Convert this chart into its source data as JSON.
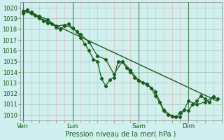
{
  "background_color": "#cff0ee",
  "grid_color_major": "#aaccbb",
  "grid_color_minor_x": "#f0bbbb",
  "line_color": "#1a5c1a",
  "xlabel": "Pression niveau de la mer( hPa )",
  "ylim": [
    1009.5,
    1020.5
  ],
  "yticks": [
    1010,
    1011,
    1012,
    1013,
    1014,
    1015,
    1016,
    1017,
    1018,
    1019,
    1020
  ],
  "xtick_labels": [
    "Ven",
    "Lun",
    "Sam",
    "Dim"
  ],
  "xtick_positions": [
    0,
    36,
    84,
    120
  ],
  "vline_x": [
    0,
    36,
    84,
    120
  ],
  "xlim": [
    -2,
    144
  ],
  "series1_x": [
    0,
    3,
    6,
    9,
    12,
    15,
    18,
    21,
    24,
    27,
    30,
    33,
    36,
    39,
    42,
    45,
    48,
    51,
    54,
    57,
    60,
    63,
    66,
    69,
    72,
    75,
    78,
    81,
    84,
    87,
    90,
    93,
    96,
    99,
    102,
    105,
    108,
    111,
    114,
    117,
    120,
    123,
    126,
    129,
    132,
    135,
    138,
    141
  ],
  "series1_y": [
    1019.7,
    1019.8,
    1019.5,
    1019.3,
    1019.0,
    1018.8,
    1018.6,
    1018.5,
    1018.2,
    1018.0,
    1018.3,
    1018.5,
    1018.1,
    1017.8,
    1017.2,
    1016.6,
    1016.0,
    1015.2,
    1015.0,
    1013.4,
    1012.7,
    1013.3,
    1013.5,
    1015.0,
    1015.0,
    1014.4,
    1014.0,
    1013.5,
    1013.2,
    1013.0,
    1012.8,
    1012.5,
    1011.8,
    1011.2,
    1010.4,
    1010.0,
    1009.9,
    1009.8,
    1010.2,
    1010.5,
    1010.4,
    1011.0,
    1011.3,
    1011.8,
    1011.5,
    1011.2,
    1011.7,
    1011.5
  ],
  "series2_x": [
    0,
    6,
    12,
    18,
    24,
    30,
    36,
    42,
    48,
    54,
    60,
    66,
    72,
    78,
    84,
    90,
    96,
    102,
    108,
    114,
    120,
    126,
    132,
    138
  ],
  "series2_y": [
    1019.5,
    1019.6,
    1019.2,
    1018.9,
    1018.3,
    1018.4,
    1018.1,
    1017.5,
    1016.8,
    1015.5,
    1015.2,
    1013.8,
    1015.0,
    1014.2,
    1013.2,
    1012.9,
    1012.2,
    1010.5,
    1009.9,
    1009.8,
    1011.3,
    1011.0,
    1011.2,
    1011.7
  ],
  "trend_x": [
    0,
    141
  ],
  "trend_y": [
    1019.8,
    1011.3
  ]
}
